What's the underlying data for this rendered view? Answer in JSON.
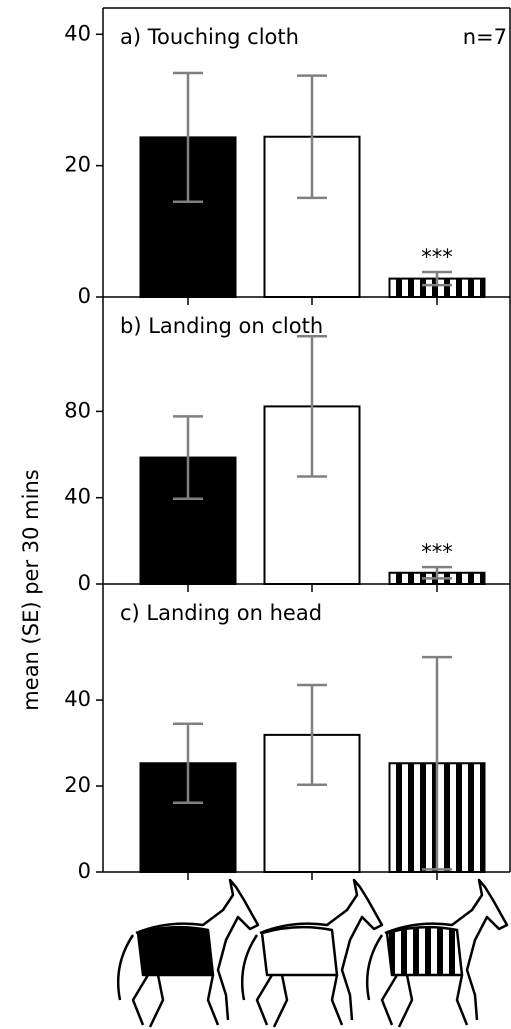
{
  "ylabel": "mean (SE) per 30 mins",
  "chart_data": [
    {
      "type": "bar",
      "title": "a) Touching cloth",
      "note": "n=7",
      "categories": [
        null,
        null,
        null
      ],
      "values": [
        24.3,
        24.4,
        2.8
      ],
      "errors": [
        9.8,
        9.3,
        1.0
      ],
      "colors": [
        "#000000",
        "#ffffff",
        "#000000"
      ],
      "patterns": [
        "solid",
        "solid",
        "vertical-stripes"
      ],
      "bar_labels": [
        null,
        null,
        "***"
      ],
      "ylim": [
        0,
        44
      ],
      "yticks": [
        0,
        20,
        40
      ]
    },
    {
      "type": "bar",
      "title": "b) Landing on cloth",
      "categories": [
        null,
        null,
        null
      ],
      "values": [
        58.6,
        82.3,
        5.2
      ],
      "errors": [
        19.1,
        32.5,
        2.6
      ],
      "colors": [
        "#000000",
        "#ffffff",
        "#000000"
      ],
      "patterns": [
        "solid",
        "solid",
        "vertical-stripes"
      ],
      "bar_labels": [
        null,
        null,
        "***"
      ],
      "ylim": [
        0,
        133
      ],
      "yticks": [
        0,
        40,
        80
      ]
    },
    {
      "type": "bar",
      "title": "c) Landing on head",
      "categories": [
        null,
        null,
        null
      ],
      "values": [
        25.3,
        31.9,
        25.3
      ],
      "errors": [
        9.2,
        11.6,
        24.7
      ],
      "colors": [
        "#000000",
        "#ffffff",
        "#000000"
      ],
      "patterns": [
        "solid",
        "solid",
        "vertical-stripes"
      ],
      "bar_labels": [
        null,
        null,
        null
      ],
      "ylim": [
        0,
        67
      ],
      "yticks": [
        0,
        20,
        40
      ]
    }
  ]
}
